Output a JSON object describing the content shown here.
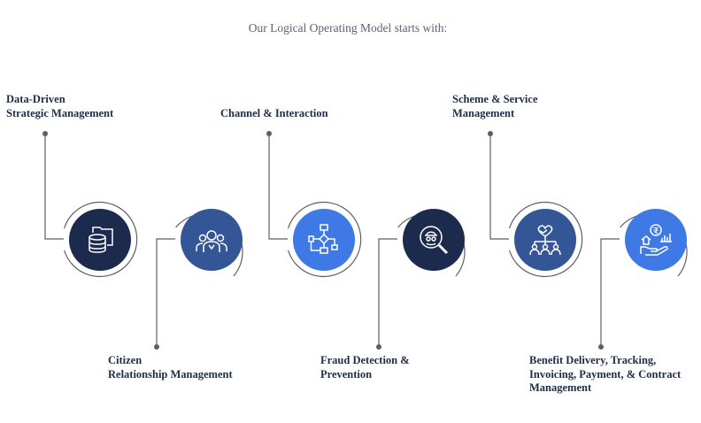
{
  "header": {
    "title": "Our Logical Operating Model starts with:"
  },
  "colors": {
    "navy": "#1c2b4d",
    "blue": "#345596",
    "bright": "#3f79e6",
    "connector": "#5e5e66",
    "text": "#1e2c4a"
  },
  "steps": [
    {
      "icon": "database-folder-icon",
      "lines": [
        "Data-Driven",
        "Strategic Management"
      ]
    },
    {
      "icon": "people-group-icon",
      "lines": [
        "Citizen",
        "Relationship Management"
      ]
    },
    {
      "icon": "flowchart-icon",
      "lines": [
        "Channel & Interaction"
      ]
    },
    {
      "icon": "magnifier-spy-icon",
      "lines": [
        "Fraud Detection &",
        "Prevention"
      ]
    },
    {
      "icon": "handshake-people-icon",
      "lines": [
        "Scheme & Service",
        "Management"
      ]
    },
    {
      "icon": "hand-rupee-chart-icon",
      "lines": [
        "Benefit Delivery, Tracking,",
        "Invoicing, Payment, & Contract",
        "Management"
      ]
    }
  ]
}
